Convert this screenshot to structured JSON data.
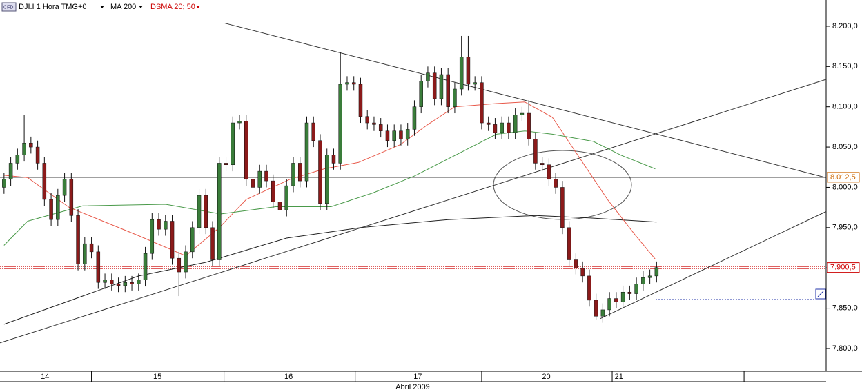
{
  "chart_data": {
    "type": "candlestick",
    "title": "DJI.I 1 Hora TMG+0",
    "study_label": "DSMA 20; 50",
    "xlim": [
      -0.6,
      122.2
    ],
    "ylim": [
      7771.7,
      8232.5
    ],
    "yticks": [
      {
        "value": 7800,
        "label": "7.800,0"
      },
      {
        "value": 7850,
        "label": "7.850,0"
      },
      {
        "value": 7900,
        "label": "7.900,0"
      },
      {
        "value": 7950,
        "label": "7.950,0"
      },
      {
        "value": 8000,
        "label": "8.000,0"
      },
      {
        "value": 8050,
        "label": "8.050,0"
      },
      {
        "value": 8100,
        "label": "8.100,0"
      },
      {
        "value": 8150,
        "label": "8.150,0"
      },
      {
        "value": 8200,
        "label": "8.200,0"
      }
    ],
    "up_color": "#3a7d3a",
    "down_color": "#8b1a1a",
    "open": [
      8000,
      8010,
      8030,
      8040,
      8055,
      8050,
      8030,
      7985,
      7960,
      7990,
      8010,
      7965,
      7905,
      7930,
      7920,
      7882,
      7885,
      7880,
      7878,
      7882,
      7880,
      7885,
      7918,
      7960,
      7948,
      7958,
      7912,
      7895,
      7920,
      7950,
      7990,
      7950,
      7910,
      8030,
      8028,
      8080,
      8082,
      8010,
      8000,
      8020,
      8008,
      7982,
      7972,
      8002,
      8030,
      8008,
      8080,
      8058,
      7980,
      8040,
      8030,
      8128,
      8130,
      8128,
      8088,
      8080,
      8078,
      8070,
      8058,
      8070,
      8060,
      8072,
      8100,
      8132,
      8142,
      8110,
      8140,
      8100,
      8122,
      8162,
      8128,
      8130,
      8080,
      8078,
      8068,
      8080,
      8068,
      8090,
      8092,
      8060,
      8030,
      8028,
      8010,
      8000,
      7950,
      7910,
      7900,
      7890,
      7860,
      7840,
      7848,
      7862,
      7858,
      7870,
      7868,
      7880,
      7888,
      7890
    ],
    "high": [
      8018,
      8038,
      8048,
      8090,
      8063,
      8058,
      8038,
      7993,
      7998,
      8018,
      8018,
      7973,
      7938,
      7938,
      7928,
      7893,
      7893,
      7888,
      7890,
      7890,
      7893,
      7926,
      7968,
      7968,
      7966,
      7966,
      7920,
      7928,
      7958,
      7998,
      7998,
      7958,
      8038,
      8038,
      8088,
      8090,
      8090,
      8018,
      8028,
      8028,
      8016,
      7990,
      8010,
      8038,
      8038,
      8088,
      8088,
      8066,
      8048,
      8048,
      8168,
      8138,
      8138,
      8136,
      8096,
      8088,
      8086,
      8078,
      8078,
      8078,
      8080,
      8108,
      8140,
      8150,
      8150,
      8148,
      8148,
      8130,
      8188,
      8188,
      8138,
      8138,
      8088,
      8086,
      8088,
      8088,
      8098,
      8100,
      8108,
      8068,
      8038,
      8036,
      8018,
      8008,
      7958,
      7918,
      7908,
      7898,
      7868,
      7856,
      7870,
      7870,
      7878,
      7878,
      7888,
      7896,
      7898,
      7908
    ],
    "low": [
      7992,
      8002,
      8022,
      8032,
      8042,
      8022,
      7977,
      7952,
      7952,
      7982,
      7957,
      7897,
      7897,
      7912,
      7874,
      7874,
      7872,
      7870,
      7870,
      7872,
      7872,
      7877,
      7910,
      7940,
      7940,
      7904,
      7865,
      7887,
      7912,
      7942,
      7942,
      7902,
      7902,
      8020,
      8020,
      8072,
      8002,
      7992,
      7992,
      8000,
      7974,
      7964,
      7964,
      7994,
      8000,
      8000,
      8050,
      7972,
      7972,
      8022,
      8022,
      8120,
      8120,
      8080,
      8072,
      8070,
      8062,
      8050,
      8050,
      8052,
      8052,
      8064,
      8092,
      8124,
      8102,
      8102,
      8092,
      8092,
      8114,
      8120,
      8120,
      8072,
      8070,
      8060,
      8060,
      8060,
      8060,
      8082,
      8052,
      8022,
      8020,
      8002,
      7992,
      7942,
      7902,
      7892,
      7882,
      7852,
      7836,
      7832,
      7840,
      7850,
      7850,
      7860,
      7860,
      7872,
      7880,
      7882
    ],
    "close": [
      8010,
      8030,
      8040,
      8055,
      8050,
      8030,
      7985,
      7960,
      7990,
      8010,
      7965,
      7905,
      7930,
      7920,
      7882,
      7885,
      7880,
      7878,
      7882,
      7880,
      7885,
      7918,
      7960,
      7948,
      7958,
      7912,
      7895,
      7920,
      7950,
      7990,
      7950,
      7910,
      8030,
      8028,
      8080,
      8082,
      8010,
      8000,
      8020,
      8008,
      7982,
      7972,
      8002,
      8030,
      8008,
      8080,
      8058,
      7980,
      8040,
      8030,
      8128,
      8130,
      8128,
      8088,
      8080,
      8078,
      8070,
      8058,
      8070,
      8060,
      8072,
      8100,
      8132,
      8142,
      8110,
      8140,
      8100,
      8122,
      8162,
      8128,
      8130,
      8080,
      8078,
      8068,
      8080,
      8068,
      8090,
      8092,
      8060,
      8030,
      8028,
      8010,
      8000,
      7950,
      7910,
      7900,
      7890,
      7860,
      7840,
      7848,
      7862,
      7858,
      7870,
      7868,
      7880,
      7888,
      7890,
      7900.5
    ],
    "series": [
      {
        "name": "MA 200",
        "color": "#222222",
        "x": [
          0,
          20,
          30,
          42,
          53,
          66,
          79,
          87,
          97
        ],
        "values": [
          7830,
          7890,
          7907,
          7937,
          7950,
          7960,
          7965,
          7962,
          7957
        ]
      },
      {
        "color": "#e8594a",
        "x": [
          0,
          3.5,
          9.7,
          20,
          27,
          32,
          36,
          42.5,
          47.6,
          52.7,
          58.9,
          63,
          67,
          73.2,
          77.4,
          81.5,
          85.6,
          89.7,
          93.8,
          96.8
        ],
        "values": [
          8015,
          8012,
          7975,
          7940,
          7915,
          7950,
          7985,
          8010,
          8023,
          8031,
          8053,
          8078,
          8100,
          8104,
          8106,
          8087,
          8036,
          7985,
          7941,
          7911
        ]
      },
      {
        "color": "#4a9a4a",
        "x": [
          0,
          3.5,
          11.7,
          24,
          32.2,
          40.4,
          48.6,
          54.8,
          61,
          67.1,
          73.2,
          77.4,
          81.5,
          87.6,
          91.7,
          96.8
        ],
        "values": [
          7928,
          7958,
          7977,
          7979,
          7967,
          7976,
          7976,
          7993,
          8014,
          8040,
          8066,
          8070,
          8066,
          8057,
          8040,
          8023
        ]
      }
    ],
    "trendlines": [
      {
        "x": [
          32.7,
          122.2
        ],
        "values": [
          8204,
          8012
        ],
        "color": "#333333"
      },
      {
        "x": [
          -0.6,
          122.2
        ],
        "values": [
          7807,
          8134
        ],
        "color": "#333333"
      },
      {
        "x": [
          88.6,
          122.2
        ],
        "values": [
          7837,
          7970
        ],
        "color": "#333333"
      }
    ],
    "level": {
      "value": 8012.5,
      "label": "8.012,5"
    },
    "last": {
      "value": 7900.5,
      "label": "7.900,5"
    },
    "days": [
      "14",
      "15",
      "16",
      "17",
      "20",
      "21"
    ],
    "day_centers": [
      6.1,
      22.8,
      42.3,
      61.5,
      80.6,
      91.4
    ],
    "day_bounds": [
      13.0,
      32.7,
      52.2,
      71.0,
      90.4,
      110.0
    ],
    "month": "Abril 2009"
  }
}
